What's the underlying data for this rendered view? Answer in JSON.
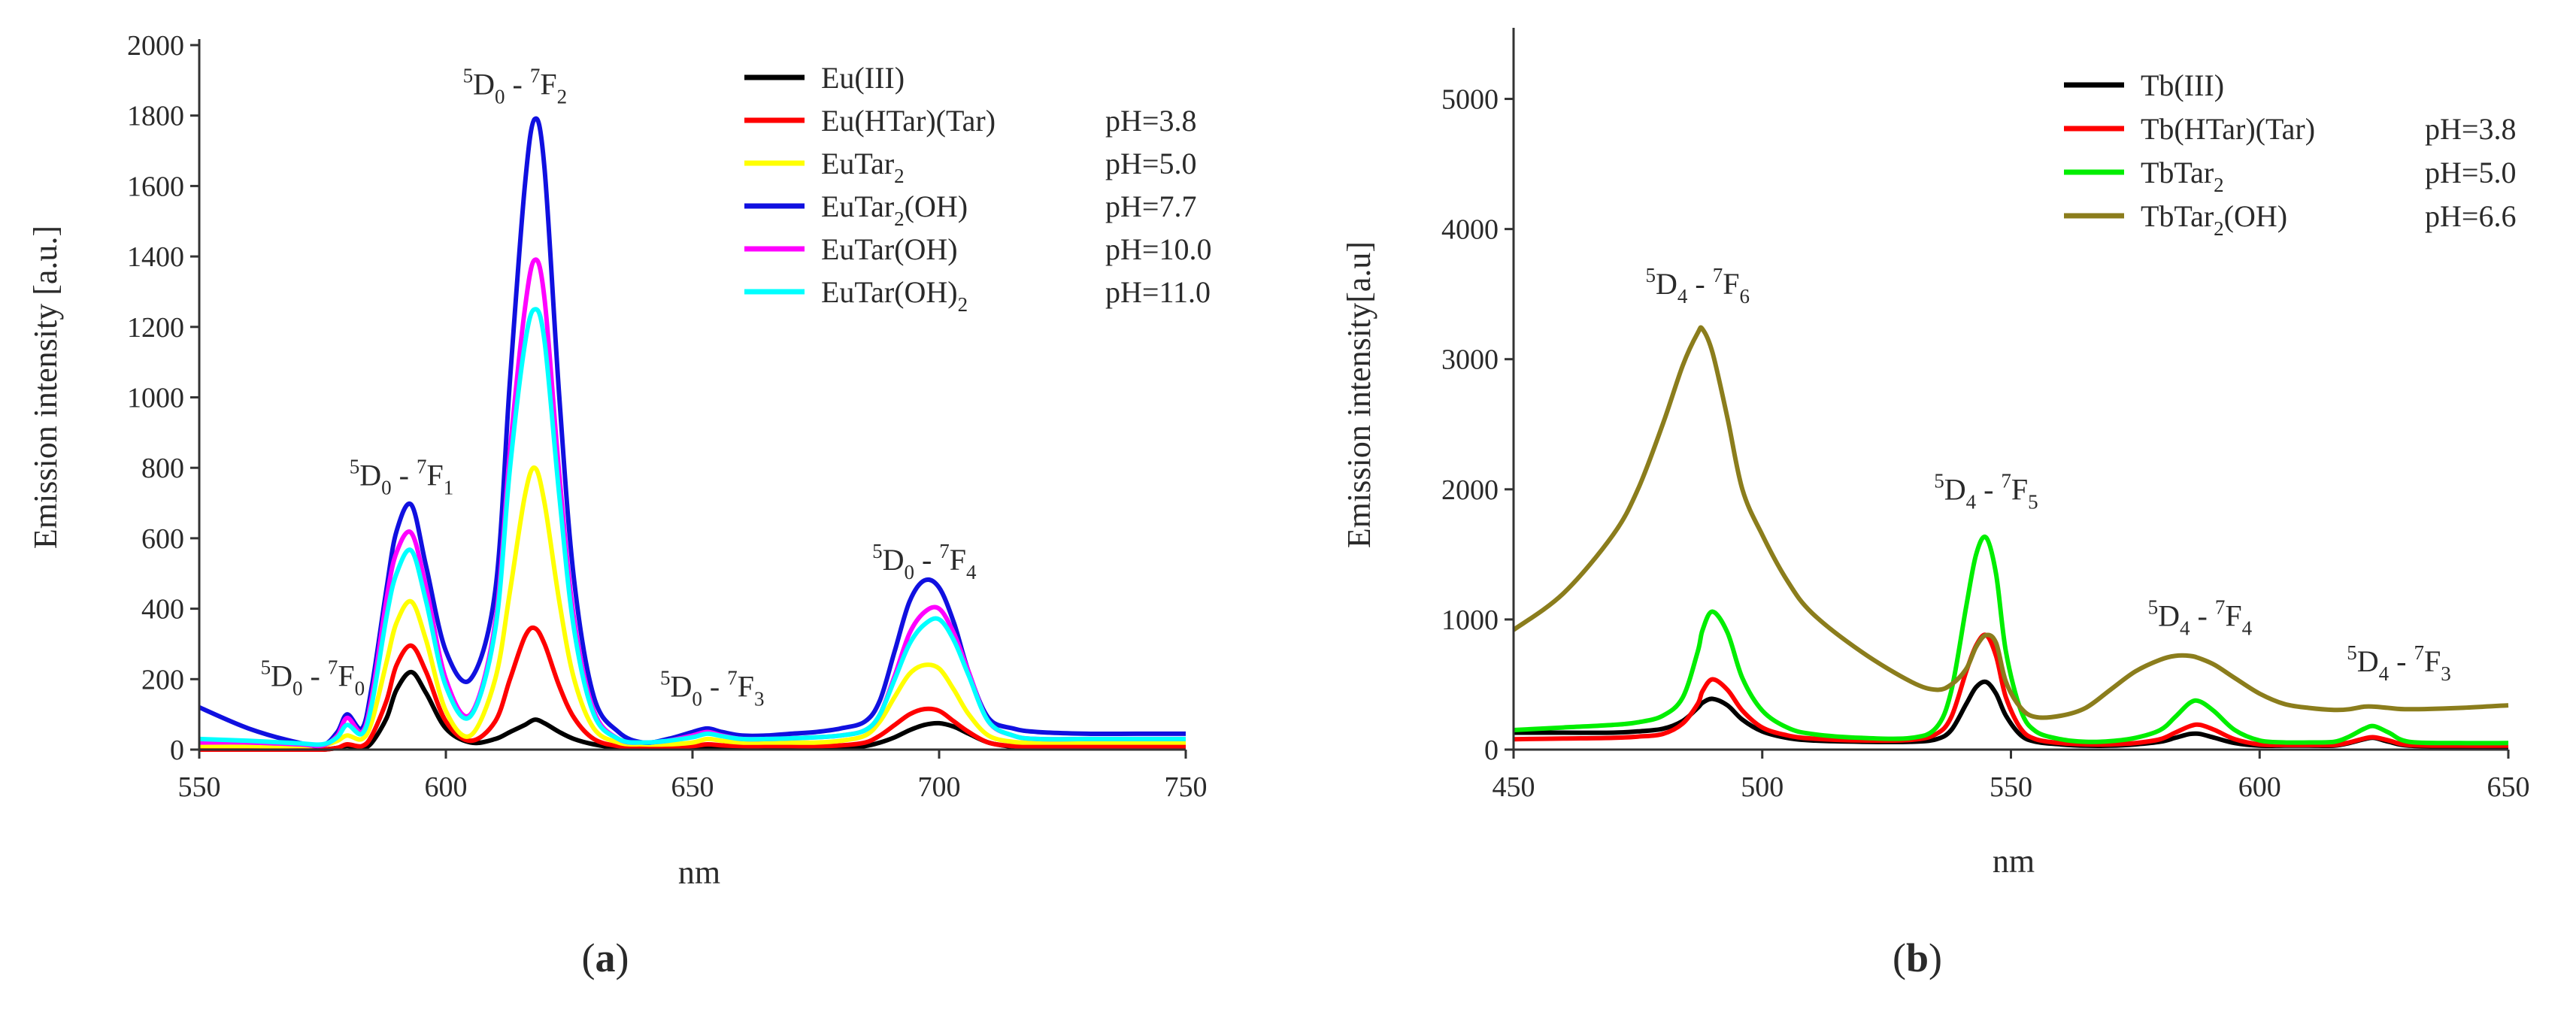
{
  "chart_data": [
    {
      "type": "line",
      "panel_label": "(a)",
      "panel_letter": "a",
      "xlabel": "nm",
      "ylabel": "Emission intensity [a.u.]",
      "xlim": [
        550,
        750
      ],
      "ylim": [
        0,
        2000
      ],
      "xticks": [
        "550",
        "600",
        "650",
        "700",
        "750"
      ],
      "yticks": [
        "0",
        "200",
        "400",
        "600",
        "800",
        "1000",
        "1200",
        "1400",
        "1600",
        "1800",
        "2000"
      ],
      "legend": [
        {
          "name": "Eu(III)",
          "sub": "",
          "tail": "",
          "ph": ""
        },
        {
          "name": "Eu(HTar)(Tar)",
          "sub": "",
          "tail": "",
          "ph": "pH=3.8"
        },
        {
          "name": "EuTar",
          "sub": "2",
          "tail": "",
          "ph": "pH=5.0"
        },
        {
          "name": "EuTar",
          "sub": "2",
          "tail": "(OH)",
          "ph": "pH=7.7"
        },
        {
          "name": "EuTar(OH)",
          "sub": "",
          "tail": "",
          "ph": "pH=10.0"
        },
        {
          "name": "EuTar(OH)",
          "sub": "2",
          "tail": "",
          "ph": "pH=11.0"
        }
      ],
      "annotations": [
        {
          "s1": "5",
          "b": "D",
          "sb": "0",
          "s2": "7",
          "c": "F",
          "sc": "0",
          "at": [
            573,
            180
          ]
        },
        {
          "s1": "5",
          "b": "D",
          "sb": "0",
          "s2": "7",
          "c": "F",
          "sc": "1",
          "at": [
            591,
            750
          ]
        },
        {
          "s1": "5",
          "b": "D",
          "sb": "0",
          "s2": "7",
          "c": "F",
          "sc": "2",
          "at": [
            614,
            1860
          ]
        },
        {
          "s1": "5",
          "b": "D",
          "sb": "0",
          "s2": "7",
          "c": "F",
          "sc": "3",
          "at": [
            654,
            150
          ]
        },
        {
          "s1": "5",
          "b": "D",
          "sb": "0",
          "s2": "7",
          "c": "F",
          "sc": "4",
          "at": [
            697,
            510
          ]
        }
      ],
      "x": [
        550,
        560,
        570,
        575,
        578,
        580,
        583,
        585,
        588,
        590,
        593,
        596,
        600,
        605,
        610,
        613,
        616,
        618,
        620,
        623,
        626,
        630,
        635,
        640,
        645,
        650,
        653,
        656,
        660,
        665,
        670,
        675,
        680,
        685,
        688,
        691,
        694,
        697,
        700,
        703,
        706,
        710,
        715,
        720,
        730,
        740,
        750
      ],
      "series": [
        {
          "name": "Eu(III)",
          "color": "#000000",
          "values": [
            0,
            0,
            0,
            0,
            5,
            10,
            5,
            20,
            90,
            170,
            220,
            160,
            60,
            20,
            30,
            50,
            70,
            85,
            75,
            50,
            30,
            15,
            5,
            5,
            5,
            5,
            8,
            6,
            5,
            5,
            5,
            5,
            5,
            10,
            20,
            35,
            55,
            70,
            75,
            65,
            45,
            20,
            8,
            5,
            5,
            5,
            5
          ]
        },
        {
          "name": "Eu(HTar)(Tar) pH=3.8",
          "color": "#ff0000",
          "values": [
            0,
            0,
            0,
            0,
            5,
            15,
            10,
            40,
            140,
            240,
            295,
            220,
            80,
            25,
            80,
            200,
            320,
            345,
            300,
            180,
            90,
            30,
            10,
            8,
            8,
            10,
            15,
            12,
            10,
            10,
            10,
            10,
            12,
            20,
            40,
            70,
            100,
            115,
            110,
            80,
            50,
            20,
            10,
            8,
            8,
            8,
            8
          ]
        },
        {
          "name": "EuTar2 pH=5.0",
          "color": "#ffff00",
          "values": [
            10,
            10,
            10,
            12,
            25,
            40,
            30,
            80,
            250,
            360,
            420,
            310,
            110,
            40,
            200,
            450,
            720,
            800,
            700,
            420,
            200,
            60,
            20,
            15,
            15,
            20,
            30,
            25,
            20,
            20,
            20,
            20,
            25,
            40,
            80,
            150,
            215,
            240,
            230,
            170,
            100,
            40,
            22,
            20,
            20,
            20,
            20
          ]
        },
        {
          "name": "EuTar2(OH) pH=7.7",
          "color": "#1010e0",
          "values": [
            120,
            60,
            20,
            12,
            50,
            100,
            60,
            180,
            460,
            620,
            695,
            520,
            280,
            200,
            450,
            1050,
            1600,
            1790,
            1650,
            1000,
            480,
            150,
            50,
            20,
            30,
            50,
            60,
            50,
            40,
            40,
            45,
            50,
            60,
            80,
            140,
            280,
            420,
            480,
            460,
            360,
            220,
            90,
            60,
            50,
            45,
            45,
            45
          ]
        },
        {
          "name": "EuTar(OH) pH=10.0",
          "color": "#ff00ff",
          "values": [
            20,
            20,
            15,
            12,
            40,
            90,
            50,
            150,
            430,
            560,
            615,
            460,
            200,
            100,
            360,
            850,
            1250,
            1390,
            1280,
            780,
            370,
            110,
            30,
            20,
            25,
            40,
            50,
            40,
            30,
            30,
            32,
            35,
            40,
            55,
            100,
            210,
            330,
            390,
            400,
            330,
            220,
            80,
            40,
            30,
            30,
            30,
            30
          ]
        },
        {
          "name": "EuTar(OH)2 pH=11.0",
          "color": "#00ffff",
          "values": [
            30,
            25,
            18,
            15,
            35,
            70,
            45,
            130,
            380,
            500,
            565,
            420,
            180,
            95,
            340,
            800,
            1150,
            1250,
            1160,
            720,
            340,
            100,
            30,
            20,
            25,
            35,
            45,
            38,
            30,
            30,
            32,
            35,
            40,
            55,
            100,
            200,
            300,
            355,
            370,
            310,
            210,
            80,
            40,
            30,
            30,
            30,
            30
          ]
        }
      ]
    },
    {
      "type": "line",
      "panel_label": "(b)",
      "panel_letter": "b",
      "xlabel": "nm",
      "ylabel": "Emission intensity[a.u]",
      "xlim": [
        450,
        650
      ],
      "ylim": [
        0,
        5500
      ],
      "xticks": [
        "450",
        "500",
        "550",
        "600",
        "650"
      ],
      "yticks": [
        "0",
        "1000",
        "2000",
        "3000",
        "4000",
        "5000"
      ],
      "legend": [
        {
          "name": "Tb(III)",
          "sub": "",
          "tail": "",
          "ph": ""
        },
        {
          "name": "Tb(HTar)(Tar)",
          "sub": "",
          "tail": "",
          "ph": "pH=3.8"
        },
        {
          "name": "TbTar",
          "sub": "2",
          "tail": "",
          "ph": "pH=5.0"
        },
        {
          "name": "TbTar",
          "sub": "2",
          "tail": "(OH)",
          "ph": "pH=6.6"
        }
      ],
      "annotations": [
        {
          "s1": "5",
          "b": "D",
          "sb": "4",
          "s2": "7",
          "c": "F",
          "sc": "6",
          "at": [
            487,
            3500
          ]
        },
        {
          "s1": "5",
          "b": "D",
          "sb": "4",
          "s2": "7",
          "c": "F",
          "sc": "5",
          "at": [
            545,
            1920
          ]
        },
        {
          "s1": "5",
          "b": "D",
          "sb": "4",
          "s2": "7",
          "c": "F",
          "sc": "4",
          "at": [
            588,
            950
          ]
        },
        {
          "s1": "5",
          "b": "D",
          "sb": "4",
          "s2": "7",
          "c": "F",
          "sc": "3",
          "at": [
            628,
            600
          ]
        }
      ],
      "x": [
        450,
        460,
        470,
        475,
        480,
        484,
        487,
        488,
        490,
        493,
        496,
        500,
        505,
        510,
        520,
        530,
        535,
        538,
        541,
        543,
        545,
        547,
        549,
        552,
        555,
        560,
        565,
        570,
        575,
        580,
        583,
        586,
        588,
        591,
        595,
        600,
        605,
        610,
        615,
        618,
        621,
        623,
        626,
        630,
        640,
        650
      ],
      "series": [
        {
          "name": "Tb(III)",
          "color": "#000000",
          "values": [
            130,
            130,
            130,
            140,
            160,
            220,
            320,
            360,
            390,
            340,
            230,
            140,
            90,
            70,
            60,
            60,
            80,
            150,
            350,
            480,
            520,
            430,
            260,
            110,
            60,
            40,
            30,
            30,
            40,
            60,
            90,
            120,
            120,
            90,
            50,
            30,
            30,
            30,
            30,
            50,
            80,
            90,
            60,
            30,
            25,
            25
          ]
        },
        {
          "name": "Tb(HTar)(Tar) pH=3.8",
          "color": "#ff0000",
          "values": [
            80,
            85,
            90,
            100,
            120,
            200,
            350,
            450,
            540,
            460,
            300,
            170,
            110,
            85,
            70,
            75,
            120,
            250,
            600,
            800,
            880,
            720,
            400,
            160,
            80,
            50,
            40,
            40,
            50,
            80,
            130,
            180,
            190,
            150,
            80,
            40,
            35,
            35,
            35,
            55,
            85,
            95,
            70,
            35,
            30,
            30
          ]
        },
        {
          "name": "TbTar2 pH=5.0",
          "color": "#00ee00",
          "values": [
            150,
            170,
            190,
            210,
            260,
            400,
            750,
            920,
            1060,
            900,
            550,
            300,
            170,
            120,
            90,
            90,
            170,
            450,
            1100,
            1500,
            1630,
            1350,
            750,
            300,
            140,
            80,
            60,
            65,
            90,
            150,
            250,
            360,
            370,
            290,
            150,
            70,
            55,
            55,
            60,
            100,
            160,
            180,
            130,
            60,
            50,
            50
          ]
        },
        {
          "name": "TbTar2(OH) pH=6.6",
          "color": "#8b7d1c",
          "values": [
            920,
            1200,
            1650,
            2000,
            2500,
            2950,
            3200,
            3230,
            3050,
            2550,
            2000,
            1650,
            1300,
            1050,
            750,
            520,
            460,
            500,
            620,
            790,
            880,
            820,
            520,
            320,
            250,
            260,
            320,
            460,
            600,
            690,
            720,
            720,
            700,
            650,
            550,
            430,
            350,
            320,
            305,
            310,
            330,
            330,
            320,
            310,
            320,
            340
          ]
        }
      ]
    }
  ]
}
